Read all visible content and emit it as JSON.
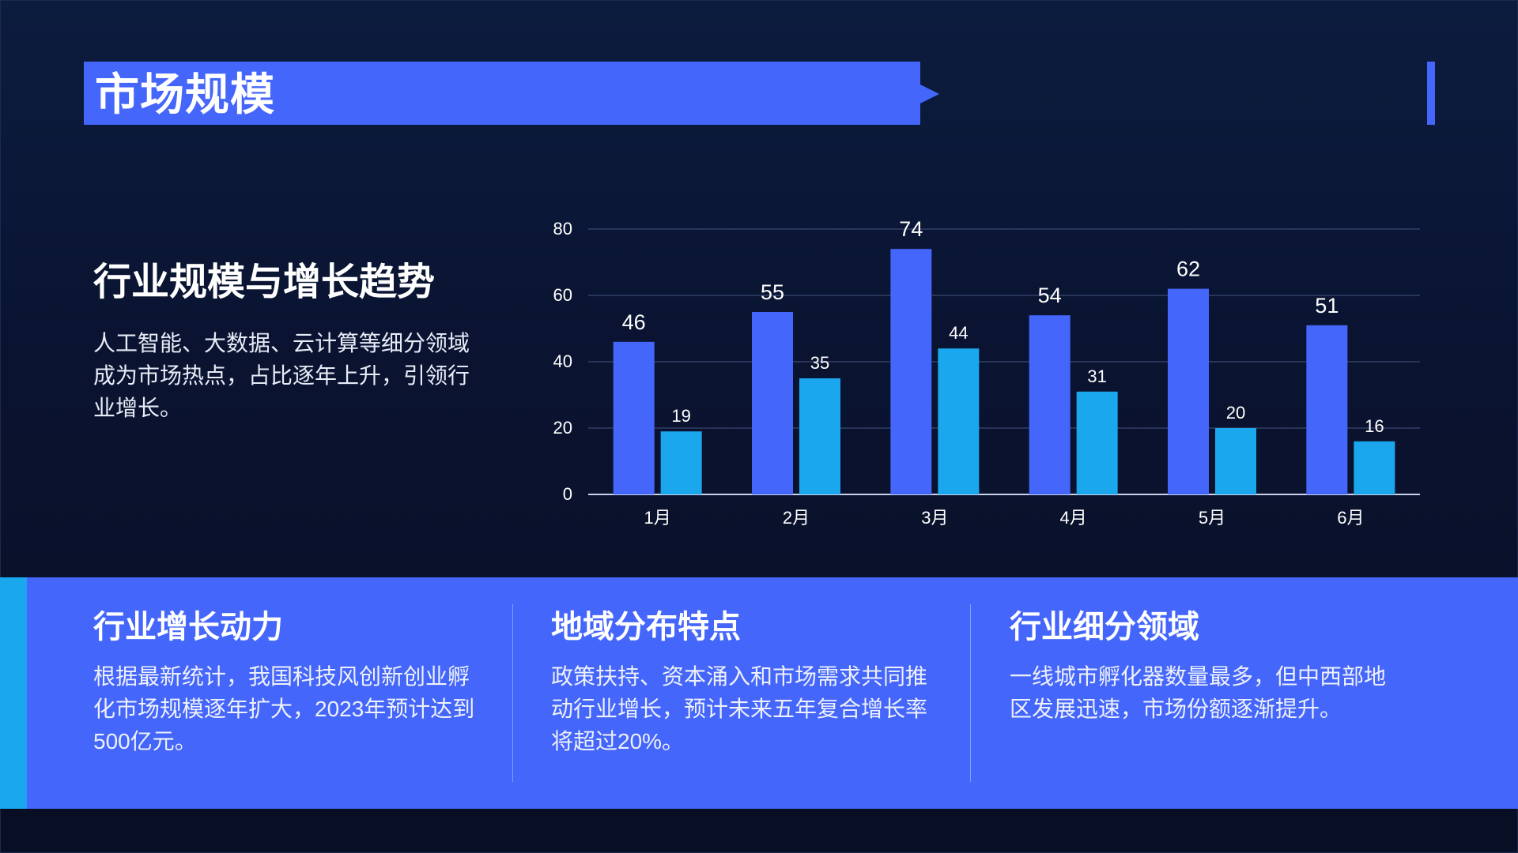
{
  "header": {
    "title": "市场规模"
  },
  "intro": {
    "heading": "行业规模与增长趋势",
    "body": "人工智能、大数据、云计算等细分领域成为市场热点，占比逐年上升，引领行业增长。"
  },
  "colors": {
    "primary": "#4466fb",
    "secondary": "#1aa7ee",
    "background": "#0a1330"
  },
  "chart_data": {
    "type": "bar",
    "categories": [
      "1月",
      "2月",
      "3月",
      "4月",
      "5月",
      "6月"
    ],
    "series": [
      {
        "values": [
          46,
          55,
          74,
          54,
          62,
          51
        ],
        "color": "#4466fb"
      },
      {
        "values": [
          19,
          35,
          44,
          31,
          20,
          16
        ],
        "color": "#1aa7ee"
      }
    ],
    "ylim": [
      0,
      80
    ],
    "yticks": [
      0,
      20,
      40,
      60,
      80
    ],
    "grid": true,
    "legend": "none"
  },
  "features": [
    {
      "title": "行业增长动力",
      "body": "根据最新统计，我国科技风创新创业孵化市场规模逐年扩大，2023年预计达到500亿元。"
    },
    {
      "title": "地域分布特点",
      "body": "政策扶持、资本涌入和市场需求共同推动行业增长，预计未来五年复合增长率将超过20%。"
    },
    {
      "title": "行业细分领域",
      "body": "一线城市孵化器数量最多，但中西部地区发展迅速，市场份额逐渐提升。"
    }
  ]
}
